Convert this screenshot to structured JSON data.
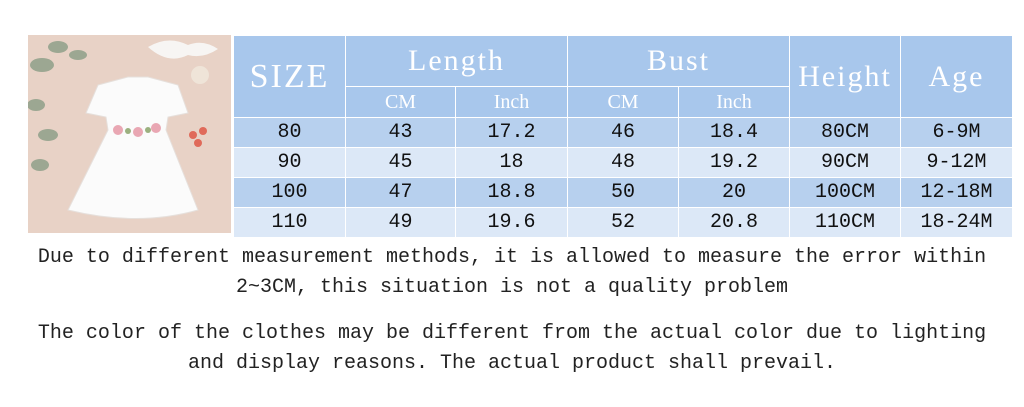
{
  "table": {
    "header": {
      "size": "SIZE",
      "length": "Length",
      "bust": "Bust",
      "height": "Height",
      "age": "Age",
      "length_units": [
        "CM",
        "Inch"
      ],
      "bust_units": [
        "CM",
        "Inch"
      ]
    },
    "rows": [
      [
        80,
        43,
        17.2,
        46,
        18.4,
        "80CM",
        "6-9M"
      ],
      [
        90,
        45,
        18,
        48,
        19.2,
        "90CM",
        "9-12M"
      ],
      [
        100,
        47,
        18.8,
        50,
        20,
        "100CM",
        "12-18M"
      ],
      [
        110,
        49,
        19.6,
        52,
        20.8,
        "110CM",
        "18-24M"
      ]
    ]
  },
  "notes": [
    "Due to different measurement methods, it is allowed to measure the error within 2~3CM, this situation is not a quality problem",
    "The color of the clothes may be different from the actual color due to lighting and display reasons. The actual product shall prevail."
  ]
}
